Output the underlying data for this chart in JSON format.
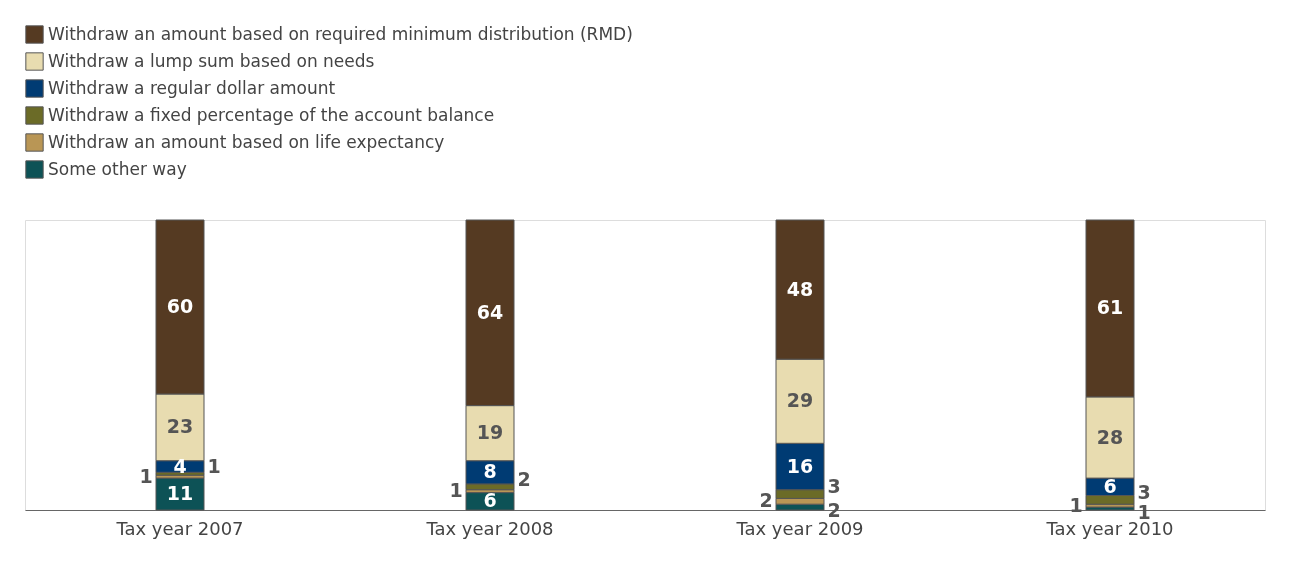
{
  "chart_data": {
    "type": "bar",
    "stacked": true,
    "data_labels": true,
    "legend": "top left",
    "categories": [
      "Tax year 2007",
      "Tax year 2008",
      "Tax year 2009",
      "Tax year 2010"
    ],
    "series": [
      {
        "name": "Some other way",
        "color": "#0d5256",
        "values": [
          11,
          6,
          2,
          1
        ]
      },
      {
        "name": "Withdraw an amount based on life expectancy",
        "color": "#b99655",
        "values": [
          1,
          1,
          2,
          1
        ]
      },
      {
        "name": "Withdraw a fixed percentage of the account balance",
        "color": "#6b6b27",
        "values": [
          1,
          2,
          3,
          3
        ]
      },
      {
        "name": "Withdraw a regular dollar amount",
        "color": "#003b73",
        "values": [
          4,
          8,
          16,
          6
        ]
      },
      {
        "name": "Withdraw a lump sum based on needs",
        "color": "#e8dcb0",
        "values": [
          23,
          19,
          29,
          28
        ]
      },
      {
        "name": "Withdraw an amount based on required minimum distribution (RMD)",
        "color": "#553a22",
        "values": [
          60,
          64,
          48,
          61
        ]
      }
    ]
  }
}
